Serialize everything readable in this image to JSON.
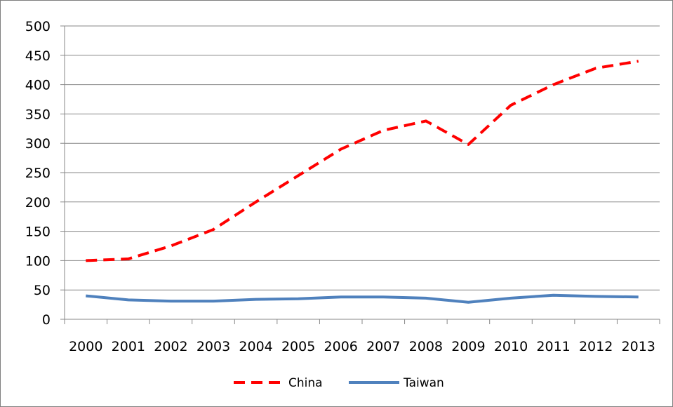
{
  "chart_data": {
    "type": "line",
    "title": "",
    "xlabel": "",
    "ylabel": "",
    "categories": [
      "2000",
      "2001",
      "2002",
      "2003",
      "2004",
      "2005",
      "2006",
      "2007",
      "2008",
      "2009",
      "2010",
      "2011",
      "2012",
      "2013"
    ],
    "ylim": [
      0,
      500
    ],
    "yticks": [
      0,
      50,
      100,
      150,
      200,
      250,
      300,
      350,
      400,
      450,
      500
    ],
    "grid": true,
    "legend_position": "bottom",
    "series": [
      {
        "name": "China",
        "color": "#ff0000",
        "style": "dashed",
        "values": [
          100,
          103,
          125,
          153,
          200,
          245,
          290,
          322,
          338,
          298,
          365,
          400,
          428,
          440
        ]
      },
      {
        "name": "Taiwan",
        "color": "#4f81bd",
        "style": "solid",
        "values": [
          40,
          33,
          31,
          31,
          34,
          35,
          38,
          38,
          36,
          29,
          36,
          41,
          39,
          38
        ]
      }
    ]
  }
}
